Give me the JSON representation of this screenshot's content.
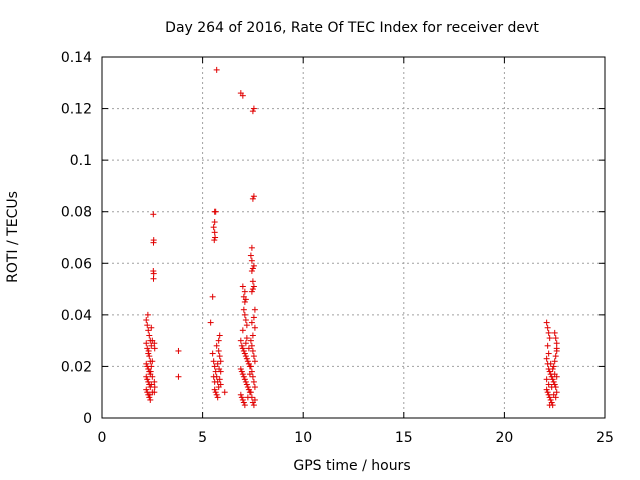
{
  "chart_data": {
    "type": "scatter",
    "title": "Day 264 of 2016, Rate Of TEC Index for receiver devt",
    "xlabel": "GPS time / hours",
    "ylabel": "ROTI / TECUs",
    "xlim": [
      0,
      25
    ],
    "ylim": [
      0,
      0.14
    ],
    "xticks": [
      0,
      5,
      10,
      15,
      20,
      25
    ],
    "xtick_labels": [
      "0",
      "5",
      "10",
      "15",
      "20",
      "25"
    ],
    "yticks": [
      0,
      0.02,
      0.04,
      0.06,
      0.08,
      0.1,
      0.12,
      0.14
    ],
    "ytick_labels": [
      "0",
      "0.02",
      "0.04",
      "0.06",
      "0.08",
      "0.1",
      "0.12",
      "0.14"
    ],
    "grid": true,
    "marker": "+",
    "color": "#e00000",
    "series": [
      {
        "name": "ROTI",
        "points": [
          [
            2.2,
            0.038
          ],
          [
            2.25,
            0.036
          ],
          [
            2.3,
            0.034
          ],
          [
            2.35,
            0.032
          ],
          [
            2.4,
            0.03
          ],
          [
            2.2,
            0.029
          ],
          [
            2.25,
            0.027
          ],
          [
            2.3,
            0.025
          ],
          [
            2.35,
            0.024
          ],
          [
            2.4,
            0.022
          ],
          [
            2.2,
            0.021
          ],
          [
            2.25,
            0.02
          ],
          [
            2.3,
            0.019
          ],
          [
            2.35,
            0.018
          ],
          [
            2.4,
            0.017
          ],
          [
            2.2,
            0.016
          ],
          [
            2.25,
            0.015
          ],
          [
            2.3,
            0.014
          ],
          [
            2.35,
            0.013
          ],
          [
            2.4,
            0.012
          ],
          [
            2.2,
            0.011
          ],
          [
            2.25,
            0.01
          ],
          [
            2.3,
            0.009
          ],
          [
            2.35,
            0.008
          ],
          [
            2.4,
            0.007
          ],
          [
            2.45,
            0.035
          ],
          [
            2.45,
            0.028
          ],
          [
            2.45,
            0.02
          ],
          [
            2.45,
            0.013
          ],
          [
            2.5,
            0.03
          ],
          [
            2.5,
            0.022
          ],
          [
            2.5,
            0.016
          ],
          [
            2.5,
            0.01
          ],
          [
            2.28,
            0.04
          ],
          [
            2.32,
            0.026
          ],
          [
            2.42,
            0.018
          ],
          [
            2.38,
            0.009
          ],
          [
            2.55,
            0.079
          ],
          [
            2.57,
            0.069
          ],
          [
            2.56,
            0.068
          ],
          [
            2.55,
            0.057
          ],
          [
            2.57,
            0.056
          ],
          [
            2.56,
            0.054
          ],
          [
            2.6,
            0.029
          ],
          [
            2.62,
            0.027
          ],
          [
            2.6,
            0.014
          ],
          [
            2.62,
            0.012
          ],
          [
            2.6,
            0.01
          ],
          [
            3.8,
            0.026
          ],
          [
            3.8,
            0.016
          ],
          [
            5.4,
            0.037
          ],
          [
            5.5,
            0.047
          ],
          [
            5.6,
            0.08
          ],
          [
            5.65,
            0.08
          ],
          [
            5.6,
            0.076
          ],
          [
            5.55,
            0.074
          ],
          [
            5.6,
            0.072
          ],
          [
            5.62,
            0.07
          ],
          [
            5.58,
            0.069
          ],
          [
            5.7,
            0.135
          ],
          [
            5.5,
            0.025
          ],
          [
            5.55,
            0.022
          ],
          [
            5.6,
            0.02
          ],
          [
            5.65,
            0.018
          ],
          [
            5.7,
            0.016
          ],
          [
            5.75,
            0.014
          ],
          [
            5.8,
            0.012
          ],
          [
            5.6,
            0.011
          ],
          [
            5.65,
            0.01
          ],
          [
            5.7,
            0.009
          ],
          [
            5.75,
            0.008
          ],
          [
            5.8,
            0.03
          ],
          [
            5.85,
            0.032
          ],
          [
            5.7,
            0.028
          ],
          [
            5.8,
            0.026
          ],
          [
            5.85,
            0.024
          ],
          [
            5.9,
            0.022
          ],
          [
            5.9,
            0.018
          ],
          [
            5.85,
            0.015
          ],
          [
            5.9,
            0.013
          ],
          [
            5.55,
            0.016
          ],
          [
            5.6,
            0.014
          ],
          [
            5.75,
            0.021
          ],
          [
            5.82,
            0.019
          ],
          [
            6.1,
            0.01
          ],
          [
            6.9,
            0.126
          ],
          [
            7.0,
            0.125
          ],
          [
            7.55,
            0.12
          ],
          [
            7.5,
            0.119
          ],
          [
            7.55,
            0.086
          ],
          [
            7.5,
            0.085
          ],
          [
            7.45,
            0.066
          ],
          [
            7.4,
            0.063
          ],
          [
            7.45,
            0.061
          ],
          [
            7.55,
            0.059
          ],
          [
            7.5,
            0.058
          ],
          [
            7.45,
            0.057
          ],
          [
            7.5,
            0.053
          ],
          [
            7.55,
            0.051
          ],
          [
            7.5,
            0.05
          ],
          [
            7.45,
            0.049
          ],
          [
            7.0,
            0.051
          ],
          [
            7.1,
            0.049
          ],
          [
            7.05,
            0.047
          ],
          [
            7.15,
            0.046
          ],
          [
            7.1,
            0.045
          ],
          [
            7.05,
            0.042
          ],
          [
            7.1,
            0.04
          ],
          [
            7.15,
            0.038
          ],
          [
            7.2,
            0.036
          ],
          [
            7.0,
            0.034
          ],
          [
            6.9,
            0.03
          ],
          [
            6.95,
            0.028
          ],
          [
            7.0,
            0.027
          ],
          [
            7.05,
            0.026
          ],
          [
            7.1,
            0.025
          ],
          [
            7.15,
            0.024
          ],
          [
            7.2,
            0.023
          ],
          [
            7.25,
            0.022
          ],
          [
            7.3,
            0.021
          ],
          [
            7.35,
            0.02
          ],
          [
            6.9,
            0.019
          ],
          [
            6.95,
            0.018
          ],
          [
            7.0,
            0.017
          ],
          [
            7.05,
            0.016
          ],
          [
            7.1,
            0.015
          ],
          [
            7.15,
            0.014
          ],
          [
            7.2,
            0.013
          ],
          [
            7.25,
            0.012
          ],
          [
            7.3,
            0.011
          ],
          [
            7.35,
            0.01
          ],
          [
            6.9,
            0.009
          ],
          [
            6.95,
            0.008
          ],
          [
            7.0,
            0.007
          ],
          [
            7.05,
            0.006
          ],
          [
            7.1,
            0.005
          ],
          [
            7.4,
            0.03
          ],
          [
            7.45,
            0.028
          ],
          [
            7.5,
            0.026
          ],
          [
            7.55,
            0.024
          ],
          [
            7.6,
            0.022
          ],
          [
            7.4,
            0.02
          ],
          [
            7.45,
            0.018
          ],
          [
            7.5,
            0.016
          ],
          [
            7.55,
            0.014
          ],
          [
            7.6,
            0.012
          ],
          [
            7.4,
            0.01
          ],
          [
            7.45,
            0.008
          ],
          [
            7.5,
            0.006
          ],
          [
            7.55,
            0.005
          ],
          [
            7.6,
            0.007
          ],
          [
            7.6,
            0.042
          ],
          [
            7.55,
            0.039
          ],
          [
            7.6,
            0.035
          ],
          [
            7.5,
            0.032
          ],
          [
            7.45,
            0.037
          ],
          [
            7.2,
            0.031
          ],
          [
            7.3,
            0.027
          ],
          [
            7.35,
            0.017
          ],
          [
            7.25,
            0.008
          ],
          [
            7.15,
            0.029
          ],
          [
            22.1,
            0.037
          ],
          [
            22.15,
            0.035
          ],
          [
            22.2,
            0.033
          ],
          [
            22.25,
            0.031
          ],
          [
            22.5,
            0.033
          ],
          [
            22.55,
            0.031
          ],
          [
            22.6,
            0.029
          ],
          [
            22.6,
            0.027
          ],
          [
            22.1,
            0.023
          ],
          [
            22.15,
            0.021
          ],
          [
            22.2,
            0.019
          ],
          [
            22.25,
            0.018
          ],
          [
            22.3,
            0.017
          ],
          [
            22.35,
            0.016
          ],
          [
            22.4,
            0.015
          ],
          [
            22.45,
            0.014
          ],
          [
            22.5,
            0.013
          ],
          [
            22.55,
            0.012
          ],
          [
            22.1,
            0.011
          ],
          [
            22.15,
            0.01
          ],
          [
            22.2,
            0.009
          ],
          [
            22.25,
            0.008
          ],
          [
            22.3,
            0.007
          ],
          [
            22.35,
            0.006
          ],
          [
            22.4,
            0.005
          ],
          [
            22.45,
            0.02
          ],
          [
            22.5,
            0.022
          ],
          [
            22.55,
            0.024
          ],
          [
            22.6,
            0.026
          ],
          [
            22.1,
            0.015
          ],
          [
            22.2,
            0.013
          ],
          [
            22.3,
            0.021
          ],
          [
            22.4,
            0.019
          ],
          [
            22.5,
            0.017
          ],
          [
            22.6,
            0.016
          ],
          [
            22.6,
            0.01
          ],
          [
            22.55,
            0.008
          ],
          [
            22.2,
            0.025
          ],
          [
            22.35,
            0.012
          ],
          [
            22.45,
            0.009
          ],
          [
            22.15,
            0.028
          ],
          [
            22.25,
            0.005
          ]
        ]
      }
    ]
  }
}
